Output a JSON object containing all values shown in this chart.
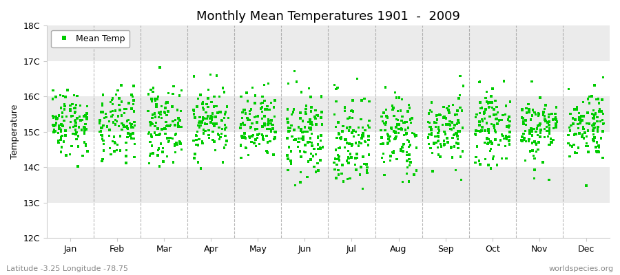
{
  "title": "Monthly Mean Temperatures 1901  -  2009",
  "ylabel": "Temperature",
  "ylim": [
    12,
    18
  ],
  "yticks": [
    12,
    13,
    14,
    15,
    16,
    17,
    18
  ],
  "ytick_labels": [
    "12C",
    "13C",
    "14C",
    "15C",
    "16C",
    "17C",
    "18C"
  ],
  "months": [
    "Jan",
    "Feb",
    "Mar",
    "Apr",
    "May",
    "Jun",
    "Jul",
    "Aug",
    "Sep",
    "Oct",
    "Nov",
    "Dec"
  ],
  "month_means": [
    15.28,
    15.12,
    15.22,
    15.3,
    15.1,
    14.88,
    14.75,
    14.92,
    15.05,
    15.12,
    15.1,
    15.22
  ],
  "month_stds": [
    0.48,
    0.5,
    0.52,
    0.5,
    0.5,
    0.62,
    0.68,
    0.58,
    0.48,
    0.48,
    0.48,
    0.5
  ],
  "n_years": 109,
  "marker_color": "#00CC00",
  "marker": "s",
  "marker_size": 2.5,
  "legend_label": "Mean Temp",
  "footer_left": "Latitude -3.25 Longitude -78.75",
  "footer_right": "worldspecies.org",
  "bg_color": "#ffffff",
  "plot_bg": "#ffffff",
  "band_colors": [
    "#ffffff",
    "#ebebeb"
  ],
  "grid_color": "#888888",
  "seed": 42
}
